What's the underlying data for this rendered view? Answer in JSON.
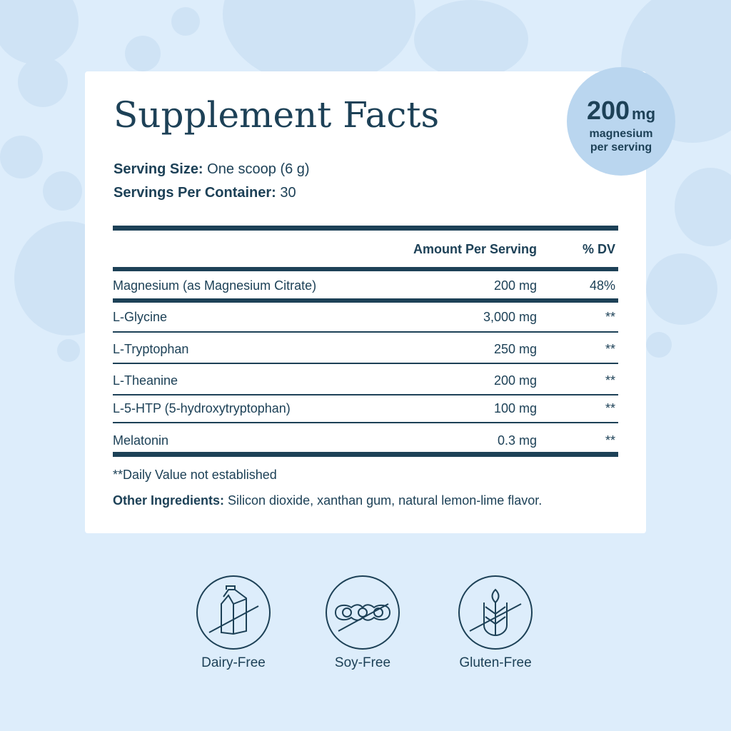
{
  "badge": {
    "value": "200",
    "unit": "mg",
    "line1": "magnesium",
    "line2": "per serving"
  },
  "facts": {
    "title": "Supplement Facts",
    "serving_size_label": "Serving Size:",
    "serving_size": " One scoop (6 g)",
    "servings_label": "Servings Per Container:",
    "servings": " 30",
    "header_amount": "Amount Per Serving",
    "header_dv": "% DV",
    "rows": [
      {
        "name": "Magnesium (as Magnesium Citrate)",
        "amount": "200 mg",
        "dv": "48%"
      },
      {
        "name": "L-Glycine",
        "amount": "3,000 mg",
        "dv": "**"
      },
      {
        "name": "L-Tryptophan",
        "amount": "250 mg",
        "dv": "**"
      },
      {
        "name": "L-Theanine",
        "amount": "200 mg",
        "dv": "**"
      },
      {
        "name": "L-5-HTP (5-hydroxytryptophan)",
        "amount": "100 mg",
        "dv": "**"
      },
      {
        "name": "Melatonin",
        "amount": "0.3 mg",
        "dv": "**"
      }
    ],
    "footnote": "**Daily Value not established",
    "other_label": "Other Ingredients:",
    "other": " Silicon dioxide, xanthan gum, natural lemon-lime flavor."
  },
  "badges": [
    {
      "icon": "milk-carton-icon",
      "label": "Dairy-Free"
    },
    {
      "icon": "soybean-icon",
      "label": "Soy-Free"
    },
    {
      "icon": "wheat-icon",
      "label": "Gluten-Free"
    }
  ],
  "colors": {
    "text": "#1d4157",
    "background": "#ddedfb",
    "badge": "#bad6ef"
  }
}
